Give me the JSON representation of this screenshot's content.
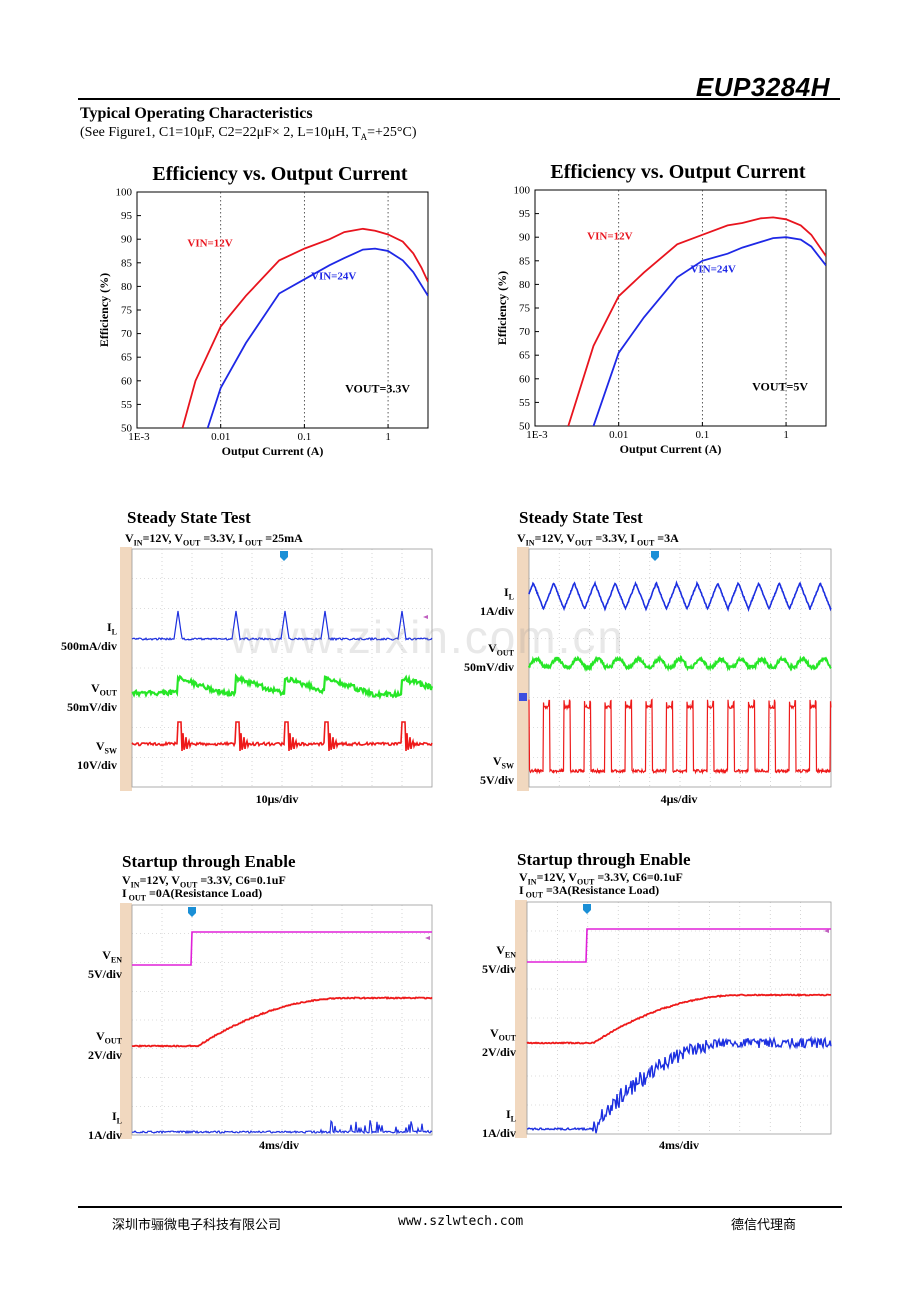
{
  "header": {
    "brand": "EUP3284H"
  },
  "section": {
    "title": "Typical Operating Characteristics",
    "conditions_pre": "(See Figure1, C1=10μF, C2=22μF× 2, L=10μH, T",
    "conditions_sub": "A",
    "conditions_post": "=+25°C)"
  },
  "chart_data": [
    {
      "type": "line",
      "title": "Efficiency vs. Output Current",
      "xlabel": "Output Current (A)",
      "ylabel": "Efficiency (%)",
      "xscale": "log",
      "xlim": [
        0.001,
        3
      ],
      "ylim": [
        50,
        100
      ],
      "xticks": [
        "1E-3",
        "0.01",
        "0.1",
        "1"
      ],
      "yticks": [
        50,
        55,
        60,
        65,
        70,
        75,
        80,
        85,
        90,
        95,
        100
      ],
      "grid": "vertical-dotted",
      "annotation": "VOUT=3.3V",
      "series": [
        {
          "name": "VIN=12V",
          "color": "#e8141e",
          "x": [
            0.0035,
            0.005,
            0.01,
            0.02,
            0.05,
            0.1,
            0.2,
            0.3,
            0.5,
            0.7,
            1.0,
            1.5,
            2.0,
            2.5,
            3.0
          ],
          "y": [
            50,
            60,
            71.5,
            78,
            85.5,
            88,
            90,
            91.5,
            92.2,
            91.8,
            91,
            89.5,
            87,
            84,
            81
          ]
        },
        {
          "name": "VIN=24V",
          "color": "#1e28e6",
          "x": [
            0.007,
            0.01,
            0.02,
            0.05,
            0.1,
            0.2,
            0.3,
            0.5,
            0.7,
            1.0,
            1.5,
            2.0,
            3.0
          ],
          "y": [
            50,
            58.5,
            68,
            78.5,
            81.5,
            84.5,
            86,
            87.8,
            88,
            87.5,
            85.5,
            83,
            78
          ]
        }
      ]
    },
    {
      "type": "line",
      "title": "Efficiency vs. Output Current",
      "xlabel": "Output Current (A)",
      "ylabel": "Efficiency (%)",
      "xscale": "log",
      "xlim": [
        0.001,
        3
      ],
      "ylim": [
        50,
        100
      ],
      "xticks": [
        "1E-3",
        "0.01",
        "0.1",
        "1"
      ],
      "yticks": [
        50,
        55,
        60,
        65,
        70,
        75,
        80,
        85,
        90,
        95,
        100
      ],
      "grid": "vertical-dotted",
      "annotation": "VOUT=5V",
      "series": [
        {
          "name": "VIN=12V",
          "color": "#e8141e",
          "x": [
            0.0025,
            0.005,
            0.01,
            0.02,
            0.05,
            0.1,
            0.2,
            0.3,
            0.5,
            0.7,
            1.0,
            1.5,
            2.0,
            3.0
          ],
          "y": [
            50,
            67,
            77.5,
            82.5,
            88.5,
            90.5,
            92.5,
            93,
            94,
            94.2,
            93.8,
            92.5,
            90.5,
            86
          ]
        },
        {
          "name": "VIN=24V",
          "color": "#1e28e6",
          "x": [
            0.005,
            0.01,
            0.02,
            0.05,
            0.1,
            0.2,
            0.3,
            0.5,
            0.7,
            1.0,
            1.5,
            2.0,
            3.0
          ],
          "y": [
            50,
            65.5,
            73,
            81.5,
            85,
            86.5,
            87.8,
            89,
            89.8,
            90,
            89.5,
            88,
            84
          ]
        }
      ]
    }
  ],
  "scopes": [
    {
      "title": "Steady State Test",
      "cond": [
        {
          "t": "V",
          "s": "IN"
        },
        {
          "t": "=12V,   V",
          "s": "OUT"
        },
        {
          "t": " =3.3V,   I",
          "s": " OUT"
        },
        {
          "t": " =25mA"
        }
      ],
      "channels": [
        {
          "name": "I",
          "sub": "L",
          "scale": "500mA/div"
        },
        {
          "name": "V",
          "sub": "OUT",
          "scale": "50mV/div"
        },
        {
          "name": "V",
          "sub": "SW",
          "scale": "10V/div"
        }
      ],
      "timebase": "10μs/div"
    },
    {
      "title": "Steady State Test",
      "cond": [
        {
          "t": "V",
          "s": "IN"
        },
        {
          "t": "=12V,   V",
          "s": "OUT"
        },
        {
          "t": " =3.3V,   I",
          "s": " OUT"
        },
        {
          "t": " =3A"
        }
      ],
      "channels": [
        {
          "name": "I",
          "sub": "L",
          "scale": "1A/div"
        },
        {
          "name": "V",
          "sub": "OUT",
          "scale": "50mV/div"
        },
        {
          "name": "V",
          "sub": "SW",
          "scale": "5V/div"
        }
      ],
      "timebase": "4μs/div"
    },
    {
      "title": "Startup through Enable",
      "cond": [
        {
          "t": "V",
          "s": "IN"
        },
        {
          "t": "=12V, V",
          "s": "OUT"
        },
        {
          "t": " =3.3V,  C6=0.1uF"
        }
      ],
      "cond2": [
        {
          "t": "I",
          "s": " OUT"
        },
        {
          "t": " =0A(Resistance Load)"
        }
      ],
      "channels": [
        {
          "name": "V",
          "sub": "EN",
          "scale": "5V/div"
        },
        {
          "name": "V",
          "sub": "OUT",
          "scale": "2V/div"
        },
        {
          "name": "I",
          "sub": "L",
          "scale": "1A/div"
        }
      ],
      "timebase": "4ms/div"
    },
    {
      "title": "Startup through Enable",
      "cond": [
        {
          "t": "V",
          "s": "IN"
        },
        {
          "t": "=12V, V",
          "s": "OUT"
        },
        {
          "t": " =3.3V,  C6=0.1uF"
        }
      ],
      "cond2": [
        {
          "t": "I",
          "s": " OUT"
        },
        {
          "t": " =3A(Resistance Load)"
        }
      ],
      "channels": [
        {
          "name": "V",
          "sub": "EN",
          "scale": "5V/div"
        },
        {
          "name": "V",
          "sub": "OUT",
          "scale": "2V/div"
        },
        {
          "name": "I",
          "sub": "L",
          "scale": "1A/div"
        }
      ],
      "timebase": "4ms/div"
    }
  ],
  "watermark": "www.zixin.com.cn",
  "footer": {
    "company": "深圳市骊微电子科技有限公司",
    "url": "www.szlwtech.com",
    "agent": "德信代理商"
  }
}
